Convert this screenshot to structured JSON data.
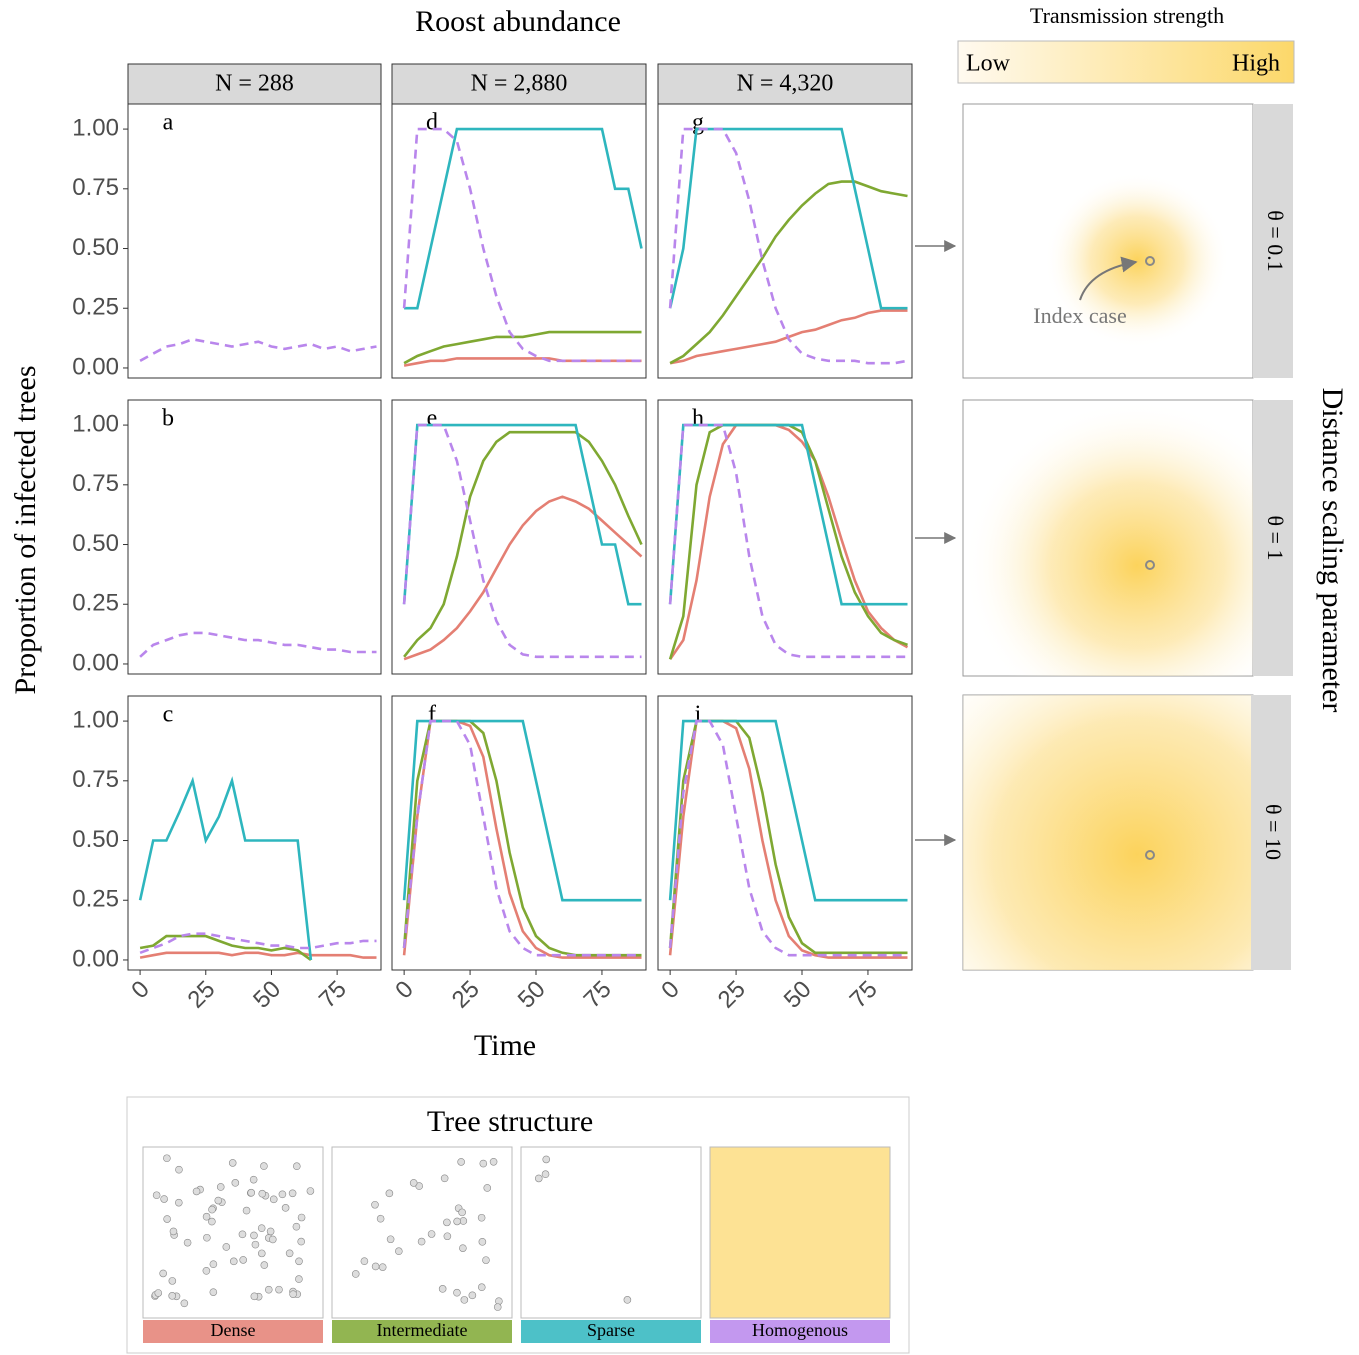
{
  "chart_data": {
    "type": "line",
    "title": "Roost abundance",
    "x_label": "Time",
    "y_label": "Proportion of infected trees",
    "columns": [
      "N = 288",
      "N = 2,880",
      "N = 4,320"
    ],
    "x": [
      0,
      5,
      10,
      15,
      20,
      25,
      30,
      35,
      40,
      45,
      50,
      55,
      60,
      65,
      70,
      75,
      80,
      85,
      90
    ],
    "xlim": [
      -4.6,
      91.7
    ],
    "xticks": [
      0,
      25,
      50,
      75
    ],
    "ylim": [
      -0.042,
      1.105
    ],
    "yticks": [
      {
        "value": 0,
        "label": "0.00"
      },
      {
        "value": 0.25,
        "label": "0.25"
      },
      {
        "value": 0.5,
        "label": "0.50"
      },
      {
        "value": 0.75,
        "label": "0.75"
      },
      {
        "value": 1,
        "label": "1.00"
      }
    ],
    "legend_title": "Tree structure",
    "series": [
      {
        "name": "Dense",
        "color": "#e47f73",
        "dashed": false
      },
      {
        "name": "Intermediate",
        "color": "#7fa832",
        "dashed": false
      },
      {
        "name": "Sparse",
        "color": "#2eb6be",
        "dashed": false
      },
      {
        "name": "Homogenous",
        "color": "#b986ec",
        "dashed": true
      }
    ],
    "panels": [
      {
        "label": "a",
        "lines": [
          null,
          null,
          null,
          [
            0.03,
            0.06,
            0.09,
            0.1,
            0.12,
            0.11,
            0.1,
            0.09,
            0.1,
            0.11,
            0.09,
            0.08,
            0.09,
            0.1,
            0.08,
            0.09,
            0.07,
            0.08,
            0.09
          ]
        ]
      },
      {
        "label": "b",
        "lines": [
          null,
          null,
          null,
          [
            0.03,
            0.08,
            0.1,
            0.12,
            0.13,
            0.13,
            0.12,
            0.11,
            0.1,
            0.1,
            0.09,
            0.08,
            0.08,
            0.07,
            0.06,
            0.06,
            0.05,
            0.05,
            0.05
          ]
        ]
      },
      {
        "label": "c",
        "lines": [
          [
            0.01,
            0.02,
            0.03,
            0.03,
            0.03,
            0.03,
            0.03,
            0.02,
            0.03,
            0.03,
            0.02,
            0.02,
            0.03,
            0.02,
            0.02,
            0.02,
            0.02,
            0.01,
            0.01
          ],
          [
            0.05,
            0.06,
            0.1,
            0.1,
            0.1,
            0.1,
            0.08,
            0.06,
            0.05,
            0.05,
            0.04,
            0.05,
            0.04,
            0.0,
            null,
            null,
            null,
            null,
            null
          ],
          [
            0.25,
            0.5,
            0.5,
            0.62,
            0.75,
            0.5,
            0.6,
            0.75,
            0.5,
            0.5,
            0.5,
            0.5,
            0.5,
            0.0,
            null,
            null,
            null,
            null,
            null
          ],
          [
            0.03,
            0.05,
            0.07,
            0.1,
            0.11,
            0.11,
            0.1,
            0.09,
            0.08,
            0.07,
            0.06,
            0.06,
            0.05,
            0.05,
            0.06,
            0.07,
            0.07,
            0.08,
            0.08
          ]
        ]
      },
      {
        "label": "d",
        "lines": [
          [
            0.01,
            0.02,
            0.03,
            0.03,
            0.04,
            0.04,
            0.04,
            0.04,
            0.04,
            0.04,
            0.04,
            0.04,
            0.03,
            0.03,
            0.03,
            0.03,
            0.03,
            0.03,
            0.03
          ],
          [
            0.02,
            0.05,
            0.07,
            0.09,
            0.1,
            0.11,
            0.12,
            0.13,
            0.13,
            0.13,
            0.14,
            0.15,
            0.15,
            0.15,
            0.15,
            0.15,
            0.15,
            0.15,
            0.15
          ],
          [
            0.25,
            0.25,
            0.5,
            0.75,
            1,
            1,
            1,
            1,
            1,
            1,
            1,
            1,
            1,
            1,
            1,
            1,
            0.75,
            0.75,
            0.5
          ],
          [
            0.25,
            1,
            1,
            1,
            0.95,
            0.75,
            0.5,
            0.3,
            0.15,
            0.08,
            0.05,
            0.03,
            0.03,
            0.03,
            0.03,
            0.03,
            0.03,
            0.03,
            0.03
          ]
        ]
      },
      {
        "label": "e",
        "lines": [
          [
            0.02,
            0.04,
            0.06,
            0.1,
            0.15,
            0.22,
            0.3,
            0.4,
            0.5,
            0.58,
            0.64,
            0.68,
            0.7,
            0.68,
            0.65,
            0.6,
            0.55,
            0.5,
            0.45
          ],
          [
            0.03,
            0.1,
            0.15,
            0.25,
            0.45,
            0.7,
            0.85,
            0.93,
            0.97,
            0.97,
            0.97,
            0.97,
            0.97,
            0.97,
            0.93,
            0.85,
            0.75,
            0.62,
            0.5
          ],
          [
            0.25,
            1,
            1,
            1,
            1,
            1,
            1,
            1,
            1,
            1,
            1,
            1,
            1,
            1,
            0.75,
            0.5,
            0.5,
            0.25,
            0.25
          ],
          [
            0.25,
            1,
            1,
            1,
            0.85,
            0.6,
            0.35,
            0.18,
            0.08,
            0.04,
            0.03,
            0.03,
            0.03,
            0.03,
            0.03,
            0.03,
            0.03,
            0.03,
            0.03
          ]
        ]
      },
      {
        "label": "f",
        "lines": [
          [
            0.02,
            0.6,
            1,
            1,
            1,
            0.98,
            0.85,
            0.55,
            0.28,
            0.12,
            0.05,
            0.02,
            0.01,
            0.01,
            0.01,
            0.01,
            0.01,
            0.01,
            0.01
          ],
          [
            0.05,
            0.75,
            1,
            1,
            1,
            1,
            0.95,
            0.75,
            0.45,
            0.22,
            0.1,
            0.05,
            0.03,
            0.02,
            0.02,
            0.02,
            0.02,
            0.02,
            0.02
          ],
          [
            0.25,
            1,
            1,
            1,
            1,
            1,
            1,
            1,
            1,
            1,
            0.75,
            0.5,
            0.25,
            0.25,
            0.25,
            0.25,
            0.25,
            0.25,
            0.25
          ],
          [
            0.05,
            0.6,
            1,
            1,
            1,
            0.9,
            0.6,
            0.3,
            0.12,
            0.05,
            0.02,
            0.02,
            0.02,
            0.02,
            0.02,
            0.02,
            0.02,
            0.02,
            0.02
          ]
        ]
      },
      {
        "label": "g",
        "lines": [
          [
            0.02,
            0.03,
            0.05,
            0.06,
            0.07,
            0.08,
            0.09,
            0.1,
            0.11,
            0.13,
            0.15,
            0.16,
            0.18,
            0.2,
            0.21,
            0.23,
            0.24,
            0.24,
            0.24
          ],
          [
            0.02,
            0.05,
            0.1,
            0.15,
            0.22,
            0.3,
            0.38,
            0.46,
            0.55,
            0.62,
            0.68,
            0.73,
            0.77,
            0.78,
            0.78,
            0.76,
            0.74,
            0.73,
            0.72
          ],
          [
            0.25,
            0.5,
            1,
            1,
            1,
            1,
            1,
            1,
            1,
            1,
            1,
            1,
            1,
            1,
            0.75,
            0.5,
            0.25,
            0.25,
            0.25
          ],
          [
            0.25,
            1,
            1,
            1,
            1,
            0.9,
            0.7,
            0.45,
            0.25,
            0.12,
            0.06,
            0.04,
            0.03,
            0.03,
            0.03,
            0.02,
            0.02,
            0.02,
            0.03
          ]
        ]
      },
      {
        "label": "h",
        "lines": [
          [
            0.02,
            0.1,
            0.35,
            0.7,
            0.92,
            1,
            1,
            1,
            1,
            0.98,
            0.93,
            0.85,
            0.7,
            0.52,
            0.35,
            0.22,
            0.15,
            0.1,
            0.07
          ],
          [
            0.02,
            0.2,
            0.75,
            0.97,
            1,
            1,
            1,
            1,
            1,
            1,
            0.97,
            0.85,
            0.65,
            0.45,
            0.3,
            0.2,
            0.13,
            0.1,
            0.08
          ],
          [
            0.25,
            1,
            1,
            1,
            1,
            1,
            1,
            1,
            1,
            1,
            1,
            0.75,
            0.5,
            0.25,
            0.25,
            0.25,
            0.25,
            0.25,
            0.25
          ],
          [
            0.25,
            1,
            1,
            1,
            1,
            0.8,
            0.45,
            0.2,
            0.08,
            0.04,
            0.03,
            0.03,
            0.03,
            0.03,
            0.03,
            0.03,
            0.03,
            0.03,
            0.03
          ]
        ]
      },
      {
        "label": "i",
        "lines": [
          [
            0.02,
            0.6,
            1,
            1,
            1,
            0.97,
            0.8,
            0.5,
            0.25,
            0.1,
            0.04,
            0.02,
            0.01,
            0.01,
            0.01,
            0.01,
            0.01,
            0.01,
            0.01
          ],
          [
            0.05,
            0.75,
            1,
            1,
            1,
            1,
            0.93,
            0.7,
            0.4,
            0.18,
            0.07,
            0.03,
            0.03,
            0.03,
            0.03,
            0.03,
            0.03,
            0.03,
            0.03
          ],
          [
            0.25,
            1,
            1,
            1,
            1,
            1,
            1,
            1,
            1,
            0.75,
            0.5,
            0.25,
            0.25,
            0.25,
            0.25,
            0.25,
            0.25,
            0.25,
            0.25
          ],
          [
            0.05,
            0.7,
            1,
            1,
            0.9,
            0.6,
            0.3,
            0.12,
            0.05,
            0.02,
            0.02,
            0.02,
            0.02,
            0.02,
            0.02,
            0.02,
            0.02,
            0.02,
            0.02
          ]
        ]
      }
    ]
  },
  "transmission": {
    "title": "Transmission strength",
    "low": "Low",
    "high": "High",
    "facet_label": "Distance scaling parameter",
    "rows": [
      "θ = 0.1",
      "θ = 1",
      "θ = 10"
    ],
    "annotation": "Index case"
  }
}
